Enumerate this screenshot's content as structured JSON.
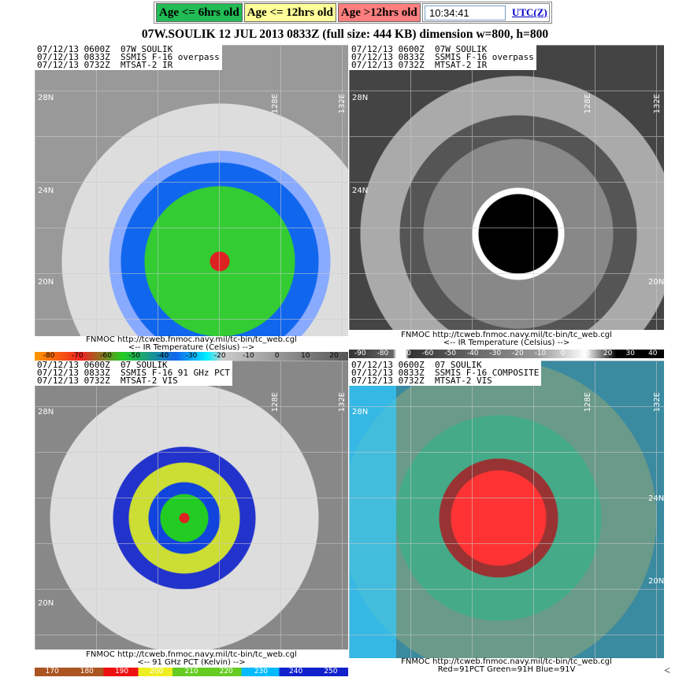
{
  "legend": {
    "age6": "Age <= 6hrs old",
    "age12": "Age <= 12hrs old",
    "ageOld": "Age >12hrs old",
    "clock": "10:34:41",
    "utc_link": "UTC(Z)",
    "colors": {
      "age6": "#22bb55",
      "age12": "#ffff99",
      "ageOld": "#ff7f7f"
    }
  },
  "title": "07W.SOULIK 12 JUL 2013 0833Z (full size: 444 KB) dimension w=800, h=800",
  "panels": [
    {
      "header": "07/12/13 0600Z  07W SOULIK\n07/12/13 0833Z  SSMIS F-16 overpass\n07/12/13 0732Z  MTSAT-2 IR",
      "caption1": "FNMOC  http://tcweb.fnmoc.navy.mil/tc-bin/tc_web.cgl",
      "caption2": "<--   IR Temperature (Celsius)   -->",
      "scale": [
        "-80",
        "-70",
        "-60",
        "-50",
        "-40",
        "-30",
        "-20",
        "-10",
        "0",
        "10",
        "20"
      ]
    },
    {
      "header": "07/12/13 0600Z  07W SOULIK\n07/12/13 0833Z  SSMIS F-16 overpass\n07/12/13 0732Z  MTSAT-2 IR",
      "caption1": "FNMOC  http://tcweb.fnmoc.navy.mil/tc-bin/tc_web.cgl",
      "caption2": "<--   IR Temperature (Celsius)   -->",
      "scale": [
        "-90",
        "-80",
        "-70",
        "-60",
        "-50",
        "-40",
        "-30",
        "-20",
        "-10",
        "0",
        "10",
        "20",
        "30",
        "40"
      ]
    },
    {
      "header": "07/12/13 0600Z  07 SOULIK\n07/12/13 0833Z  SSMIS F-16 91 GHz PCT\n07/12/13 0732Z  MTSAT-2 VIS",
      "caption1": "FNMOC  http://tcweb.fnmoc.navy.mil/tc-bin/tc_web.cgl",
      "caption2": "<--   91 GHz PCT (Kelvin)   -->",
      "scale": [
        "170",
        "180",
        "190",
        "200",
        "210",
        "220",
        "230",
        "240",
        "250"
      ]
    },
    {
      "header": "07/12/13 0600Z  07 SOULIK\n07/12/13 0833Z  SSMIS F-16 COMPOSITE\n07/12/13 0732Z  MTSAT-2 VIS",
      "caption1": "FNMOC  http://tcweb.fnmoc.navy.mil/tc-bin/tc_web.cgl",
      "caption2": "Red=91PCT  Green=91H  Blue=91V"
    }
  ],
  "map_labels": {
    "lat28": "28N",
    "lat24": "24N",
    "lat20": "20N",
    "lon128": "128E",
    "lon132": "132E"
  },
  "corner": "<"
}
